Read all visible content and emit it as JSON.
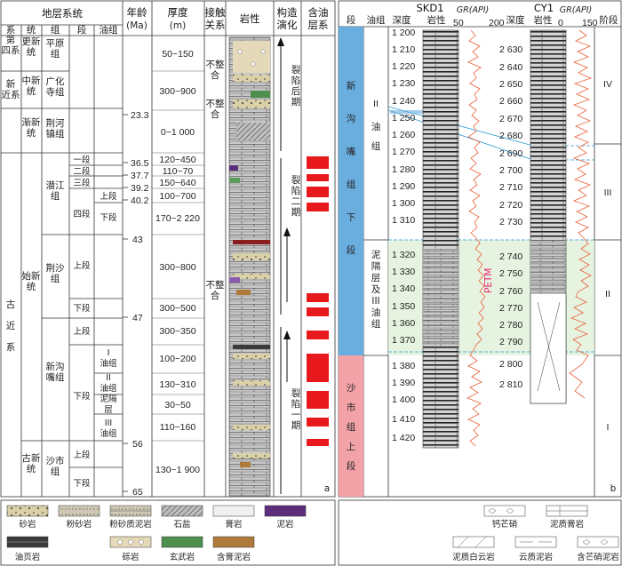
{
  "panel_a": {
    "headers": {
      "xi": "系",
      "tong": "统",
      "zu": "组",
      "duan": "段",
      "youzu": "油组",
      "age": "年龄",
      "age_unit": "(Ma)",
      "thick": "厚度",
      "thick_unit": "(m)",
      "contact": "接触",
      "contact2": "关系",
      "litho": "岩性",
      "tect": "构造",
      "tect2": "演化",
      "oil": "含油",
      "oil2": "层系"
    },
    "xi": [
      {
        "text": "第四系"
      },
      {
        "text": "新近系"
      },
      {
        "text": "古近系"
      }
    ],
    "tong": [
      {
        "text": "更新统"
      },
      {
        "text": "中新统"
      },
      {
        "text": "渐新统"
      },
      {
        "text": "始新统"
      },
      {
        "text": "古新统"
      }
    ],
    "zu": [
      {
        "text": "平原组"
      },
      {
        "text": "广化寺组"
      },
      {
        "text": "荆河镇组"
      },
      {
        "text": "潜江组"
      },
      {
        "text": "荆沙组"
      },
      {
        "text": "新沟嘴组"
      },
      {
        "text": "沙市组"
      }
    ],
    "duan": [
      "一段",
      "二段",
      "三段",
      "四段",
      "上段",
      "下段",
      "上段",
      "下段",
      "上段",
      "下段"
    ],
    "youzu": [
      "上段",
      "下段",
      "I油组",
      "II油组",
      "泥隔层",
      "III油组"
    ],
    "ages": [
      "23.3",
      "36.5",
      "37.7",
      "39.2",
      "40.2",
      "43",
      "47",
      "56",
      "65"
    ],
    "thicknesses": [
      "50~150",
      "300~900",
      "0~1 000",
      "120~450",
      "110~70",
      "150~640",
      "100~700",
      "170~2 220",
      "300~800",
      "300~500",
      "300~350",
      "100~200",
      "130~310",
      "30~50",
      "110~160",
      "130~1 900"
    ],
    "contacts": [
      "不整合",
      "不整合",
      "不整合"
    ],
    "tect": [
      "裂陷后期",
      "裂陷一期",
      "裂陷二期"
    ],
    "label": "a"
  },
  "panel_b": {
    "headers": {
      "duan": "段",
      "youzu": "油组",
      "depth": "深度",
      "litho": "岩性",
      "gr": "GR(API)",
      "depth2": "深度",
      "litho2": "岩性",
      "gr2": "GR(API)",
      "stage": "阶段"
    },
    "well1": "SKD1",
    "well2": "CY1",
    "gr_ticks1": [
      "50",
      "200"
    ],
    "gr_ticks2": [
      "0",
      "150"
    ],
    "depths1": [
      "1 200",
      "1 210",
      "1 220",
      "1 230",
      "1 240",
      "1 250",
      "1 260",
      "1 270",
      "1 280",
      "1 290",
      "1 300",
      "1 310",
      "1 320",
      "1 330",
      "1 340",
      "1 350",
      "1 360",
      "1 370",
      "1 380",
      "1 390",
      "1 400",
      "1 410",
      "1 420"
    ],
    "depths2": [
      "2 630",
      "2 640",
      "2 650",
      "2 660",
      "2 670",
      "2 680",
      "2 690",
      "2 700",
      "2 710",
      "2 720",
      "2 730",
      "2 740",
      "2 750",
      "2 760",
      "2 770",
      "2 780",
      "2 790",
      "2 800",
      "2 810"
    ],
    "duan_upper": "新沟嘴组下段",
    "duan_lower": "沙市组上段",
    "youzu_upper_num": "II",
    "youzu_upper": "油组",
    "youzu_mid": "泥隔层及III油组",
    "petm": "PETM",
    "stages": [
      "IV",
      "III",
      "II",
      "I"
    ],
    "label": "b"
  },
  "legend": {
    "row1": [
      "砂岩",
      "粉砂岩",
      "粉砂质泥岩",
      "石盐",
      "膏岩",
      "泥岩"
    ],
    "row2": [
      "油页岩",
      "砾岩",
      "玄武岩",
      "含膏泥岩"
    ],
    "right_top": [
      "钙芒硝",
      "泥质膏岩"
    ],
    "right_bot": [
      "泥质白云岩",
      "云质泥岩",
      "含芒硝泥岩"
    ]
  },
  "colors": {
    "oil": "#e8191c",
    "blue": "#6aaee0",
    "pink": "#f3a3a8",
    "green": "#e3f1dc",
    "gr": "#e8623a",
    "petm": "#e8236c"
  }
}
